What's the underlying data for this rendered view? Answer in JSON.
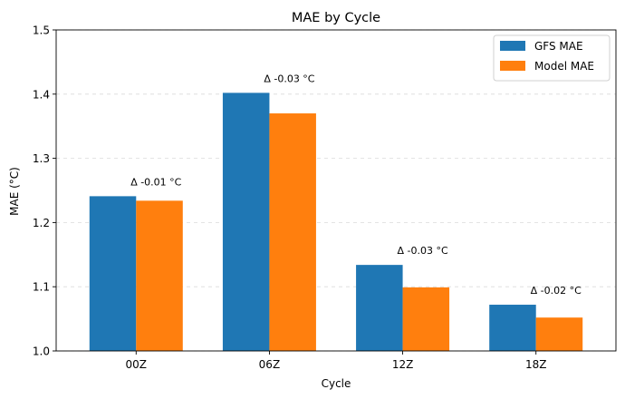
{
  "chart_data": {
    "type": "bar",
    "title": "MAE by Cycle",
    "xlabel": "Cycle",
    "ylabel": "MAE (°C)",
    "categories": [
      "00Z",
      "06Z",
      "12Z",
      "18Z"
    ],
    "series": [
      {
        "name": "GFS MAE",
        "color": "#1f77b4",
        "values": [
          1.241,
          1.402,
          1.134,
          1.072
        ]
      },
      {
        "name": "Model MAE",
        "color": "#ff7f0e",
        "values": [
          1.234,
          1.37,
          1.099,
          1.052
        ]
      }
    ],
    "annotations": [
      "Δ -0.01 °C",
      "Δ -0.03 °C",
      "Δ -0.03 °C",
      "Δ -0.02 °C"
    ],
    "ylim": [
      1.0,
      1.5
    ],
    "yticks": [
      "1.0",
      "1.1",
      "1.2",
      "1.3",
      "1.4",
      "1.5"
    ],
    "grid": "y-dashed",
    "legend_position": "top-right"
  }
}
